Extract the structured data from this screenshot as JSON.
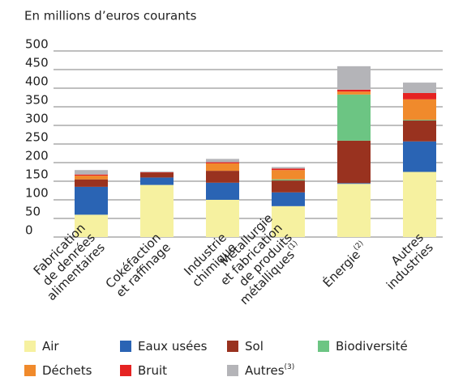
{
  "chart_data": {
    "type": "stacked_bar",
    "subtitle": "En millions d’euros courants",
    "categories": [
      [
        "Fabrication",
        "de denrées",
        "alimentaires"
      ],
      [
        "Cokéfaction",
        "et raffinage"
      ],
      [
        "Industrie",
        "chimique"
      ],
      [
        "Métallurgie",
        "et fabrication",
        "de produits",
        "métalliques"
      ],
      [
        "Énergie"
      ],
      [
        "Autres",
        "industries"
      ]
    ],
    "category_notes": {
      "3": "(1)",
      "4": "(2)"
    },
    "series": [
      {
        "name": "Air",
        "color": "#f6f1a0",
        "values": [
          60,
          140,
          100,
          83,
          143,
          175
        ]
      },
      {
        "name": "Eaux usées",
        "color": "#2a64b4",
        "values": [
          75,
          20,
          46,
          37,
          2,
          82
        ]
      },
      {
        "name": "Sol",
        "color": "#99321f",
        "values": [
          20,
          13,
          32,
          32,
          114,
          56
        ]
      },
      {
        "name": "Biodiversité",
        "color": "#6cc583",
        "values": [
          0,
          0,
          0,
          3,
          124,
          2
        ]
      },
      {
        "name": "Déchets",
        "color": "#f08a2c",
        "values": [
          10,
          0,
          20,
          25,
          8,
          55
        ]
      },
      {
        "name": "Bruit",
        "color": "#e52322",
        "values": [
          3,
          1,
          3,
          4,
          5,
          17
        ]
      },
      {
        "name": "Autres",
        "note": "(3)",
        "color": "#b4b4b8",
        "values": [
          12,
          2,
          9,
          4,
          63,
          28
        ]
      }
    ],
    "ylim": [
      0,
      500
    ],
    "yticks": [
      0,
      50,
      100,
      150,
      200,
      250,
      300,
      350,
      400,
      450,
      500
    ],
    "grid": true
  }
}
